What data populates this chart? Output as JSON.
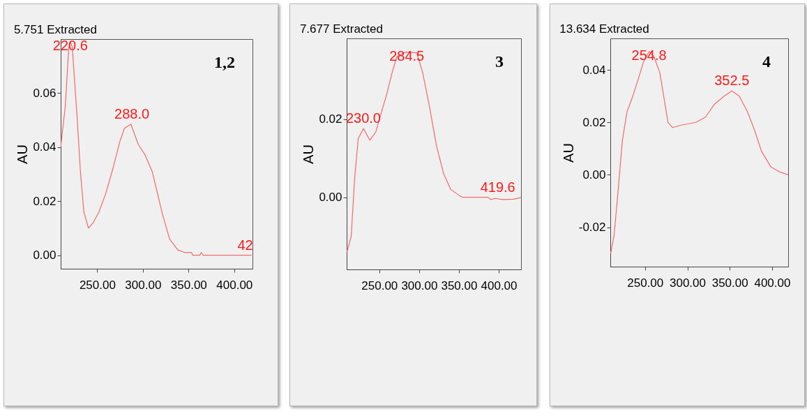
{
  "chart_data": [
    {
      "type": "line",
      "title": "5.751 Extracted",
      "ylabel": "AU",
      "x": [
        210,
        215,
        218.9,
        220.6,
        222.7,
        227.8,
        231.6,
        235.4,
        240.4,
        245.5,
        251.9,
        259.5,
        267.1,
        274.7,
        279.8,
        286.9,
        295,
        302.6,
        310.2,
        316.6,
        321.6,
        329.2,
        338.1,
        345.7,
        353.3,
        354.6,
        362.2,
        364,
        366,
        419
      ],
      "series": [
        {
          "color": "#f26b6b",
          "values": [
            0.04,
            0.055,
            0.077,
            0.079,
            0.077,
            0.052,
            0.031,
            0.016,
            0.01,
            0.012,
            0.016,
            0.023,
            0.032,
            0.042,
            0.047,
            0.0485,
            0.041,
            0.037,
            0.031,
            0.022,
            0.015,
            0.006,
            0.002,
            0.001,
            0.001,
            0,
            0,
            0.001,
            0,
            0
          ]
        }
      ],
      "xlim": [
        210,
        420
      ],
      "ylim": [
        -0.005,
        0.08
      ],
      "xticks": [
        {
          "value": 250,
          "label": "250.00"
        },
        {
          "value": 300,
          "label": "300.00"
        },
        {
          "value": 350,
          "label": "350.00"
        },
        {
          "value": 400,
          "label": "400.00"
        }
      ],
      "yticks": [
        {
          "value": 0,
          "label": "0.00"
        },
        {
          "value": 0.02,
          "label": "0.02"
        },
        {
          "value": 0.04,
          "label": "0.04"
        },
        {
          "value": 0.06,
          "label": "0.06"
        }
      ],
      "grid": false,
      "annotations": [
        {
          "text": "220.6",
          "x": 220.6,
          "y": 0.079
        },
        {
          "text": "288.0",
          "x": 288.0,
          "y": 0.0485
        },
        {
          "text": "42",
          "x": 419,
          "y": 0
        },
        "1,2"
      ]
    },
    {
      "type": "line",
      "title": "7.677 Extracted",
      "ylabel": "AU",
      "x": [
        209.4,
        214.7,
        219.1,
        223.5,
        230,
        238.2,
        245.6,
        251.5,
        258.8,
        266.2,
        272,
        280.9,
        284.5,
        297,
        304.4,
        313.2,
        322,
        330.9,
        339.7,
        351.4,
        354.4,
        386.7,
        389.7,
        395.5,
        404.4,
        419,
        427.9
      ],
      "series": [
        {
          "color": "#f26b6b",
          "values": [
            -0.014,
            -0.01,
            0.005,
            0.015,
            0.0176,
            0.0146,
            0.0167,
            0.021,
            0.026,
            0.032,
            0.036,
            0.037,
            0.0372,
            0.037,
            0.032,
            0.023,
            0.013,
            0.006,
            0.002,
            0.0003,
            0,
            0,
            -0.0006,
            -0.0003,
            -0.0006,
            -0.0005,
            -0.0001
          ]
        }
      ],
      "xlim": [
        209,
        428
      ],
      "ylim": [
        -0.0185,
        0.0407
      ],
      "xticks": [
        {
          "value": 250,
          "label": "250.00"
        },
        {
          "value": 300,
          "label": "300.00"
        },
        {
          "value": 350,
          "label": "350.00"
        },
        {
          "value": 400,
          "label": "400.00"
        }
      ],
      "yticks": [
        {
          "value": 0,
          "label": "0.00"
        },
        {
          "value": 0.02,
          "label": "0.02"
        }
      ],
      "grid": false,
      "annotations": [
        {
          "text": "230.0",
          "x": 230.0,
          "y": 0.0176
        },
        {
          "text": "284.5",
          "x": 284.5,
          "y": 0.0372
        },
        {
          "text": "419.6",
          "x": 419,
          "y": 0
        },
        "3"
      ]
    },
    {
      "type": "line",
      "title": "13.634 Extracted",
      "ylabel": "AU",
      "x": [
        209.4,
        213.5,
        217.7,
        223.2,
        228.7,
        235.6,
        242.5,
        248.1,
        254.8,
        260.5,
        267.4,
        273,
        277.1,
        282.6,
        293.6,
        310.2,
        321.3,
        332.3,
        343.4,
        352.5,
        361.3,
        371,
        379.3,
        387.5,
        398.6,
        409.6,
        419
      ],
      "series": [
        {
          "color": "#f26b6b",
          "values": [
            -0.03,
            -0.023,
            -0.008,
            0.013,
            0.024,
            0.03,
            0.037,
            0.043,
            0.047,
            0.045,
            0.039,
            0.028,
            0.02,
            0.018,
            0.019,
            0.02,
            0.022,
            0.027,
            0.03,
            0.032,
            0.03,
            0.024,
            0.017,
            0.009,
            0.003,
            0.001,
            0
          ]
        }
      ],
      "xlim": [
        209,
        419
      ],
      "ylim": [
        -0.035,
        0.052
      ],
      "xticks": [
        {
          "value": 250,
          "label": "250.00"
        },
        {
          "value": 300,
          "label": "300.00"
        },
        {
          "value": 350,
          "label": "350.00"
        },
        {
          "value": 400,
          "label": "400.00"
        }
      ],
      "yticks": [
        {
          "value": -0.02,
          "label": "-0.02"
        },
        {
          "value": 0,
          "label": "0.00"
        },
        {
          "value": 0.02,
          "label": "0.02"
        },
        {
          "value": 0.04,
          "label": "0.04"
        }
      ],
      "grid": false,
      "annotations": [
        {
          "text": "254.8",
          "x": 254.8,
          "y": 0.047
        },
        {
          "text": "352.5",
          "x": 352.5,
          "y": 0.032
        },
        "4"
      ]
    }
  ]
}
